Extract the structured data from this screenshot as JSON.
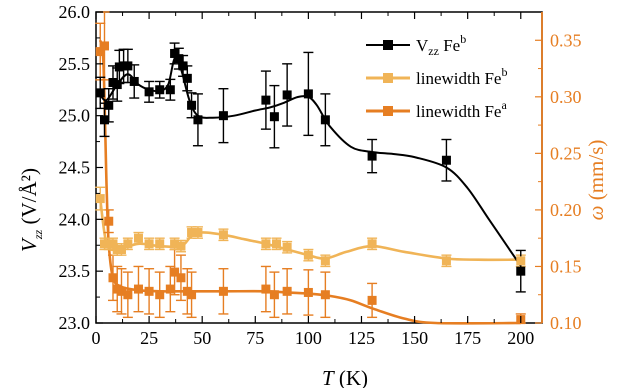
{
  "chart_data": {
    "type": "line",
    "x_axis": {
      "label_main": "T",
      "label_unit": " (K)",
      "range": [
        0,
        210
      ],
      "ticks": [
        0,
        25,
        50,
        75,
        100,
        125,
        150,
        175,
        200
      ]
    },
    "y_left": {
      "label_main": "V",
      "label_sub": "zz",
      "label_unit": " (V/Å²)",
      "range": [
        23.0,
        26.0
      ],
      "ticks": [
        23.0,
        23.5,
        24.0,
        24.5,
        25.0,
        25.5,
        26.0
      ],
      "tick_labels": [
        "23.0",
        "23.5",
        "24.0",
        "24.5",
        "25.0",
        "25.5",
        "26.0"
      ]
    },
    "y_right": {
      "label_main": "ω",
      "label_unit": " (mm/s)",
      "range": [
        0.1,
        0.375
      ],
      "ticks": [
        0.1,
        0.15,
        0.2,
        0.25,
        0.3,
        0.35
      ],
      "tick_labels": [
        "0.10",
        "0.15",
        "0.20",
        "0.25",
        "0.30",
        "0.35"
      ],
      "color": "#e67e22"
    },
    "series": [
      {
        "name": "V_zz Fe^b",
        "legend_main": "V",
        "legend_sub": "zz",
        "legend_mid": " Fe",
        "legend_sup": "b",
        "axis": "left",
        "color": "#000000",
        "marker": "square",
        "points": [
          {
            "x": 2,
            "y": 25.22,
            "err": 0.15
          },
          {
            "x": 4,
            "y": 24.96,
            "err": 0.16
          },
          {
            "x": 6,
            "y": 25.1,
            "err": 0.16
          },
          {
            "x": 8,
            "y": 25.32,
            "err": 0.16
          },
          {
            "x": 10,
            "y": 25.3,
            "err": 0.16
          },
          {
            "x": 11,
            "y": 25.47,
            "err": 0.16
          },
          {
            "x": 13,
            "y": 25.48,
            "err": 0.16
          },
          {
            "x": 15,
            "y": 25.48,
            "err": 0.16
          },
          {
            "x": 18,
            "y": 25.33,
            "err": 0.16
          },
          {
            "x": 25,
            "y": 25.23,
            "err": 0.1
          },
          {
            "x": 30,
            "y": 25.25,
            "err": 0.08
          },
          {
            "x": 35,
            "y": 25.25,
            "err": 0.1
          },
          {
            "x": 37,
            "y": 25.6,
            "err": 0.1
          },
          {
            "x": 39,
            "y": 25.55,
            "err": 0.1
          },
          {
            "x": 41,
            "y": 25.48,
            "err": 0.1
          },
          {
            "x": 43,
            "y": 25.36,
            "err": 0.12
          },
          {
            "x": 45,
            "y": 25.1,
            "err": 0.12
          },
          {
            "x": 48,
            "y": 24.96,
            "err": 0.25
          },
          {
            "x": 60,
            "y": 25.0,
            "err": 0.26
          },
          {
            "x": 80,
            "y": 25.15,
            "err": 0.28
          },
          {
            "x": 84,
            "y": 24.99,
            "err": 0.3
          },
          {
            "x": 90,
            "y": 25.2,
            "err": 0.3
          },
          {
            "x": 100,
            "y": 25.21,
            "err": 0.4
          },
          {
            "x": 108,
            "y": 24.96,
            "err": 0.25
          },
          {
            "x": 130,
            "y": 24.61,
            "err": 0.16
          },
          {
            "x": 165,
            "y": 24.57,
            "err": 0.2
          },
          {
            "x": 200,
            "y": 23.5,
            "err": 0.2
          }
        ],
        "fit": [
          [
            2,
            25.2
          ],
          [
            5,
            25.15
          ],
          [
            10,
            25.3
          ],
          [
            15,
            25.4
          ],
          [
            20,
            25.3
          ],
          [
            25,
            25.25
          ],
          [
            30,
            25.24
          ],
          [
            34,
            25.3
          ],
          [
            37,
            25.55
          ],
          [
            40,
            25.45
          ],
          [
            44,
            25.15
          ],
          [
            48,
            25.0
          ],
          [
            55,
            24.98
          ],
          [
            65,
            25.0
          ],
          [
            75,
            25.05
          ],
          [
            82,
            25.08
          ],
          [
            88,
            25.12
          ],
          [
            95,
            25.18
          ],
          [
            100,
            25.18
          ],
          [
            104,
            25.1
          ],
          [
            110,
            24.9
          ],
          [
            120,
            24.7
          ],
          [
            130,
            24.65
          ],
          [
            140,
            24.63
          ],
          [
            150,
            24.6
          ],
          [
            165,
            24.5
          ],
          [
            175,
            24.3
          ],
          [
            185,
            24.0
          ],
          [
            195,
            23.7
          ],
          [
            200,
            23.55
          ]
        ]
      },
      {
        "name": "linewidth Fe^b",
        "legend_main": "linewidth Fe",
        "legend_sup": "b",
        "axis": "right",
        "color": "#f0b457",
        "marker": "square",
        "points": [
          {
            "x": 2,
            "y": 0.21,
            "err": 0.01
          },
          {
            "x": 4,
            "y": 0.17,
            "err": 0.005
          },
          {
            "x": 6,
            "y": 0.17,
            "err": 0.005
          },
          {
            "x": 8,
            "y": 0.17,
            "err": 0.005
          },
          {
            "x": 10,
            "y": 0.165,
            "err": 0.005
          },
          {
            "x": 12,
            "y": 0.165,
            "err": 0.005
          },
          {
            "x": 15,
            "y": 0.17,
            "err": 0.005
          },
          {
            "x": 20,
            "y": 0.175,
            "err": 0.005
          },
          {
            "x": 25,
            "y": 0.17,
            "err": 0.005
          },
          {
            "x": 30,
            "y": 0.17,
            "err": 0.005
          },
          {
            "x": 37,
            "y": 0.17,
            "err": 0.005
          },
          {
            "x": 40,
            "y": 0.168,
            "err": 0.005
          },
          {
            "x": 45,
            "y": 0.18,
            "err": 0.005
          },
          {
            "x": 48,
            "y": 0.18,
            "err": 0.005
          },
          {
            "x": 60,
            "y": 0.178,
            "err": 0.005
          },
          {
            "x": 80,
            "y": 0.17,
            "err": 0.005
          },
          {
            "x": 85,
            "y": 0.17,
            "err": 0.005
          },
          {
            "x": 90,
            "y": 0.167,
            "err": 0.005
          },
          {
            "x": 100,
            "y": 0.16,
            "err": 0.005
          },
          {
            "x": 108,
            "y": 0.155,
            "err": 0.005
          },
          {
            "x": 130,
            "y": 0.17,
            "err": 0.005
          },
          {
            "x": 165,
            "y": 0.155,
            "err": 0.005
          },
          {
            "x": 200,
            "y": 0.155,
            "err": 0.005
          }
        ],
        "fit": [
          [
            2,
            0.21
          ],
          [
            5,
            0.17
          ],
          [
            10,
            0.165
          ],
          [
            20,
            0.17
          ],
          [
            30,
            0.168
          ],
          [
            40,
            0.168
          ],
          [
            45,
            0.177
          ],
          [
            50,
            0.18
          ],
          [
            60,
            0.178
          ],
          [
            70,
            0.174
          ],
          [
            80,
            0.17
          ],
          [
            90,
            0.165
          ],
          [
            100,
            0.16
          ],
          [
            108,
            0.157
          ],
          [
            118,
            0.163
          ],
          [
            130,
            0.168
          ],
          [
            145,
            0.163
          ],
          [
            165,
            0.157
          ],
          [
            180,
            0.156
          ],
          [
            200,
            0.156
          ]
        ]
      },
      {
        "name": "linewidth Fe^a",
        "legend_main": "linewidth Fe",
        "legend_sup": "a",
        "axis": "right",
        "color": "#e67e22",
        "marker": "square",
        "points": [
          {
            "x": 2,
            "y": 0.34,
            "err": 0.025
          },
          {
            "x": 4,
            "y": 0.345,
            "err": 0.03
          },
          {
            "x": 6,
            "y": 0.19,
            "err": 0.01
          },
          {
            "x": 8,
            "y": 0.14,
            "err": 0.02
          },
          {
            "x": 10,
            "y": 0.13,
            "err": 0.02
          },
          {
            "x": 12,
            "y": 0.128,
            "err": 0.02
          },
          {
            "x": 15,
            "y": 0.125,
            "err": 0.02
          },
          {
            "x": 20,
            "y": 0.13,
            "err": 0.02
          },
          {
            "x": 25,
            "y": 0.128,
            "err": 0.02
          },
          {
            "x": 30,
            "y": 0.125,
            "err": 0.02
          },
          {
            "x": 35,
            "y": 0.13,
            "err": 0.02
          },
          {
            "x": 37,
            "y": 0.145,
            "err": 0.02
          },
          {
            "x": 40,
            "y": 0.14,
            "err": 0.02
          },
          {
            "x": 43,
            "y": 0.128,
            "err": 0.02
          },
          {
            "x": 45,
            "y": 0.125,
            "err": 0.02
          },
          {
            "x": 60,
            "y": 0.128,
            "err": 0.02
          },
          {
            "x": 80,
            "y": 0.13,
            "err": 0.02
          },
          {
            "x": 84,
            "y": 0.125,
            "err": 0.02
          },
          {
            "x": 90,
            "y": 0.128,
            "err": 0.02
          },
          {
            "x": 100,
            "y": 0.127,
            "err": 0.02
          },
          {
            "x": 108,
            "y": 0.125,
            "err": 0.02
          },
          {
            "x": 130,
            "y": 0.12,
            "err": 0.015
          },
          {
            "x": 200,
            "y": 0.103,
            "err": 0.005
          }
        ],
        "fit": [
          [
            2,
            0.35
          ],
          [
            3.5,
            0.33
          ],
          [
            5,
            0.22
          ],
          [
            6,
            0.17
          ],
          [
            8,
            0.14
          ],
          [
            12,
            0.132
          ],
          [
            20,
            0.129
          ],
          [
            30,
            0.128
          ],
          [
            40,
            0.128
          ],
          [
            60,
            0.128
          ],
          [
            80,
            0.128
          ],
          [
            90,
            0.127
          ],
          [
            100,
            0.126
          ],
          [
            110,
            0.124
          ],
          [
            120,
            0.12
          ],
          [
            130,
            0.113
          ],
          [
            145,
            0.104
          ],
          [
            160,
            0.1
          ],
          [
            200,
            0.1
          ]
        ]
      }
    ],
    "legend": {
      "placement": "top-right"
    }
  }
}
